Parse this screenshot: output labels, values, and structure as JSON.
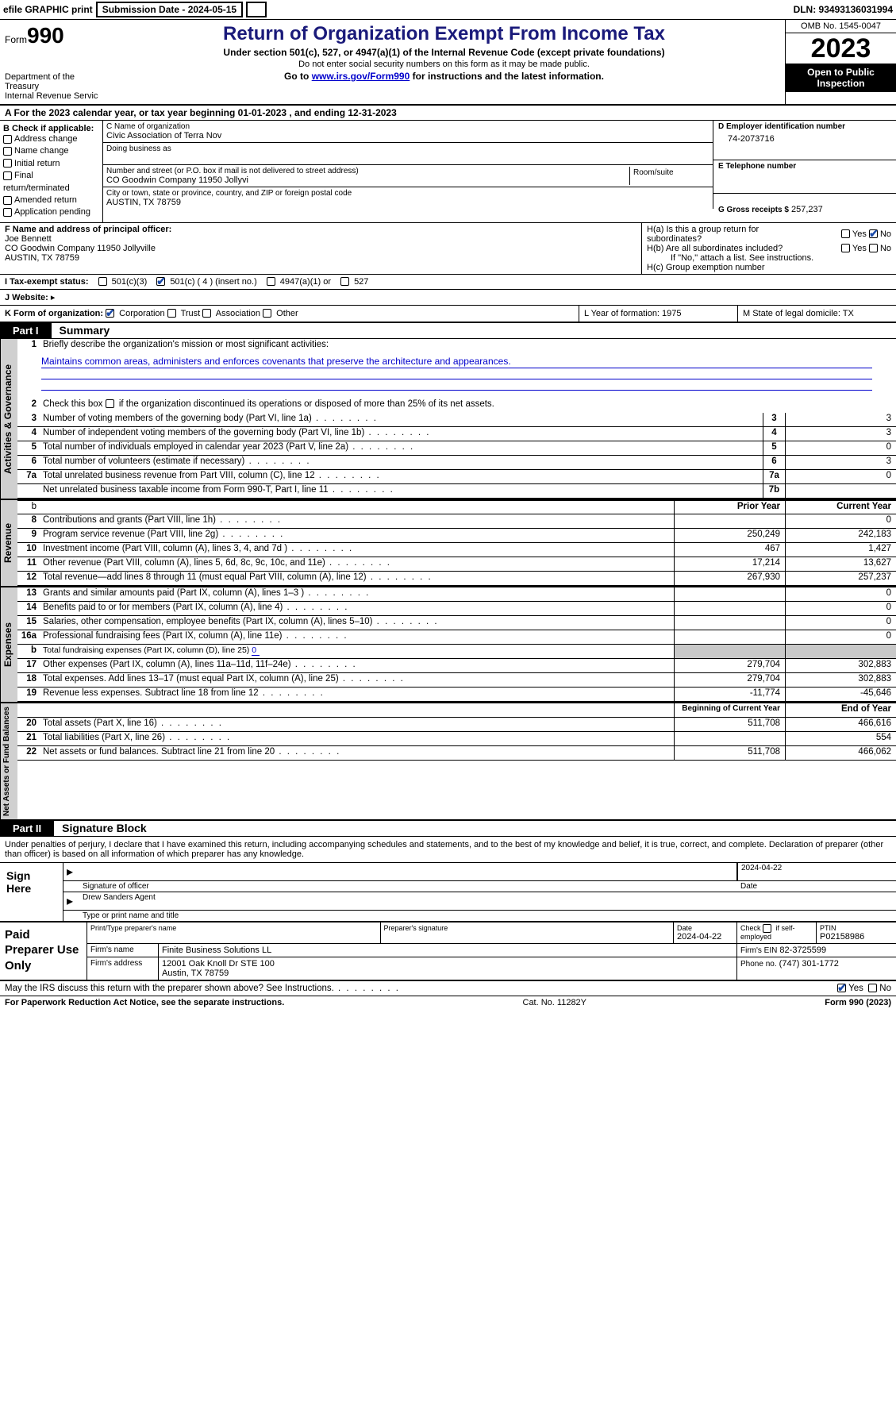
{
  "colors": {
    "accent": "#1a1a7a",
    "link": "#0000cc",
    "check": "#1a4aa8",
    "shade": "#c8c8c8",
    "vlbl": "#d0d0d0"
  },
  "topbar": {
    "efile": "efile GRAPHIC print",
    "submission": "Submission Date - 2024-05-15",
    "dln": "DLN: 93493136031994"
  },
  "header": {
    "form_small": "Form",
    "form": "990",
    "dept": "Department of the Treasury",
    "irs": "Internal Revenue Service",
    "title": "Return of Organization Exempt From Income Tax",
    "sub1": "Under section 501(c), 527, or 4947(a)(1) of the Internal Revenue Code (except private foundations)",
    "sub2": "Do not enter social security numbers on this form as it may be made public.",
    "sub3_pre": "Go to ",
    "sub3_link": "www.irs.gov/Form990",
    "sub3_post": " for instructions and the latest information.",
    "omb": "OMB No. 1545-0047",
    "year": "2023",
    "inspect": "Open to Public Inspection"
  },
  "rowA": "A  For the 2023 calendar year, or tax year beginning 01-01-2023    , and ending 12-31-2023",
  "boxB": {
    "hdr": "B Check if applicable:",
    "opts": [
      "Address change",
      "Name change",
      "Initial return",
      "Final return/terminated",
      "Amended return",
      "Application pending"
    ]
  },
  "boxC": {
    "name_lbl": "C Name of organization",
    "name": "Civic Association of Terra Nov",
    "dba_lbl": "Doing business as",
    "addr_lbl": "Number and street (or P.O. box if mail is not delivered to street address)",
    "addr": "CO Goodwin Company 11950 Jollyvi",
    "room_lbl": "Room/suite",
    "city_lbl": "City or town, state or province, country, and ZIP or foreign postal code",
    "city": "AUSTIN, TX  78759"
  },
  "boxD": {
    "lbl": "D Employer identification number",
    "val": "74-2073716"
  },
  "boxE": {
    "lbl": "E Telephone number",
    "val": ""
  },
  "boxG": {
    "lbl": "G Gross receipts $",
    "val": "257,237"
  },
  "boxF": {
    "lbl": "F  Name and address of principal officer:",
    "name": "Joe Bennett",
    "addr1": "CO Goodwin Company 11950 Jollyville",
    "addr2": "AUSTIN, TX  78759"
  },
  "boxH": {
    "a": "H(a)  Is this a group return for subordinates?",
    "b": "H(b)  Are all subordinates included?",
    "note": "If \"No,\" attach a list. See instructions.",
    "c": "H(c)  Group exemption number",
    "yes": "Yes",
    "no": "No"
  },
  "rowI": {
    "lbl": "I     Tax-exempt status:",
    "o1": "501(c)(3)",
    "o2": "501(c) ( 4 ) (insert no.)",
    "o3": "4947(a)(1) or",
    "o4": "527"
  },
  "rowJ": {
    "lbl": "J     Website:",
    "arrow": "▸"
  },
  "rowK": {
    "lbl": "K Form of organization:",
    "opts": [
      "Corporation",
      "Trust",
      "Association",
      "Other"
    ],
    "L": "L Year of formation: 1975",
    "M": "M State of legal domicile: TX"
  },
  "partI": {
    "tab": "Part I",
    "title": "Summary"
  },
  "gov": {
    "vlabel": "Activities & Governance",
    "l1": "Briefly describe the organization's mission or most significant activities:",
    "l1txt": "Maintains common areas, administers and enforces covenants that preserve the architecture and appearances.",
    "l2": "Check this box        if the organization discontinued its operations or disposed of more than 25% of its net assets.",
    "rows": [
      {
        "n": "3",
        "d": "Number of voting members of the governing body (Part VI, line 1a)",
        "box": "3",
        "v": "3"
      },
      {
        "n": "4",
        "d": "Number of independent voting members of the governing body (Part VI, line 1b)",
        "box": "4",
        "v": "3"
      },
      {
        "n": "5",
        "d": "Total number of individuals employed in calendar year 2023 (Part V, line 2a)",
        "box": "5",
        "v": "0"
      },
      {
        "n": "6",
        "d": "Total number of volunteers (estimate if necessary)",
        "box": "6",
        "v": "3"
      },
      {
        "n": "7a",
        "d": "Total unrelated business revenue from Part VIII, column (C), line 12",
        "box": "7a",
        "v": "0"
      },
      {
        "n": "",
        "d": "Net unrelated business taxable income from Form 990-T, Part I, line 11",
        "box": "7b",
        "v": ""
      }
    ]
  },
  "rev": {
    "vlabel": "Revenue",
    "hdr_prior": "Prior Year",
    "hdr_curr": "Current Year",
    "rows": [
      {
        "n": "8",
        "d": "Contributions and grants (Part VIII, line 1h)",
        "p": "",
        "c": "0"
      },
      {
        "n": "9",
        "d": "Program service revenue (Part VIII, line 2g)",
        "p": "250,249",
        "c": "242,183"
      },
      {
        "n": "10",
        "d": "Investment income (Part VIII, column (A), lines 3, 4, and 7d )",
        "p": "467",
        "c": "1,427"
      },
      {
        "n": "11",
        "d": "Other revenue (Part VIII, column (A), lines 5, 6d, 8c, 9c, 10c, and 11e)",
        "p": "17,214",
        "c": "13,627"
      },
      {
        "n": "12",
        "d": "Total revenue—add lines 8 through 11 (must equal Part VIII, column (A), line 12)",
        "p": "267,930",
        "c": "257,237"
      }
    ]
  },
  "exp": {
    "vlabel": "Expenses",
    "rows": [
      {
        "n": "13",
        "d": "Grants and similar amounts paid (Part IX, column (A), lines 1–3 )",
        "p": "",
        "c": "0"
      },
      {
        "n": "14",
        "d": "Benefits paid to or for members (Part IX, column (A), line 4)",
        "p": "",
        "c": "0"
      },
      {
        "n": "15",
        "d": "Salaries, other compensation, employee benefits (Part IX, column (A), lines 5–10)",
        "p": "",
        "c": "0"
      },
      {
        "n": "16a",
        "d": "Professional fundraising fees (Part IX, column (A), line 11e)",
        "p": "",
        "c": "0"
      }
    ],
    "l16b_n": "b",
    "l16b": "Total fundraising expenses (Part IX, column (D), line 25)",
    "l16b_val": "0",
    "rows2": [
      {
        "n": "17",
        "d": "Other expenses (Part IX, column (A), lines 11a–11d, 11f–24e)",
        "p": "279,704",
        "c": "302,883"
      },
      {
        "n": "18",
        "d": "Total expenses. Add lines 13–17 (must equal Part IX, column (A), line 25)",
        "p": "279,704",
        "c": "302,883"
      },
      {
        "n": "19",
        "d": "Revenue less expenses. Subtract line 18 from line 12",
        "p": "-11,774",
        "c": "-45,646"
      }
    ]
  },
  "net": {
    "vlabel": "Net Assets or Fund Balances",
    "hdr_beg": "Beginning of Current Year",
    "hdr_end": "End of Year",
    "rows": [
      {
        "n": "20",
        "d": "Total assets (Part X, line 16)",
        "p": "511,708",
        "c": "466,616"
      },
      {
        "n": "21",
        "d": "Total liabilities (Part X, line 26)",
        "p": "",
        "c": "554"
      },
      {
        "n": "22",
        "d": "Net assets or fund balances. Subtract line 21 from line 20",
        "p": "511,708",
        "c": "466,062"
      }
    ]
  },
  "partII": {
    "tab": "Part II",
    "title": "Signature Block"
  },
  "sig": {
    "intro": "Under penalties of perjury, I declare that I have examined this return, including accompanying schedules and statements, and to the best of my knowledge and belief, it is true, correct, and complete. Declaration of preparer (other than officer) is based on all information of which preparer has any knowledge.",
    "here": "Sign Here",
    "date": "2024-04-22",
    "sig_lbl": "Signature of officer",
    "date_lbl": "Date",
    "name": "Drew Sanders  Agent",
    "type_lbl": "Type or print name and title"
  },
  "prep": {
    "left": "Paid Preparer Use Only",
    "h1": "Print/Type preparer's name",
    "h2": "Preparer's signature",
    "h3": "Date",
    "h3v": "2024-04-22",
    "h4": "Check        if self-employed",
    "h5": "PTIN",
    "h5v": "P02158986",
    "firm_lbl": "Firm's name",
    "firm": "Finite Business Solutions LL",
    "ein_lbl": "Firm's EIN",
    "ein": "82-3725599",
    "addr_lbl": "Firm's address",
    "addr1": "12001 Oak Knoll Dr STE 100",
    "addr2": "Austin, TX  78759",
    "phone_lbl": "Phone no.",
    "phone": "(747) 301-1772"
  },
  "discuss": {
    "q": "May the IRS discuss this return with the preparer shown above? See Instructions.",
    "yes": "Yes",
    "no": "No"
  },
  "footer": {
    "left": "For Paperwork Reduction Act Notice, see the separate instructions.",
    "mid": "Cat. No. 11282Y",
    "right": "Form 990 (2023)"
  }
}
